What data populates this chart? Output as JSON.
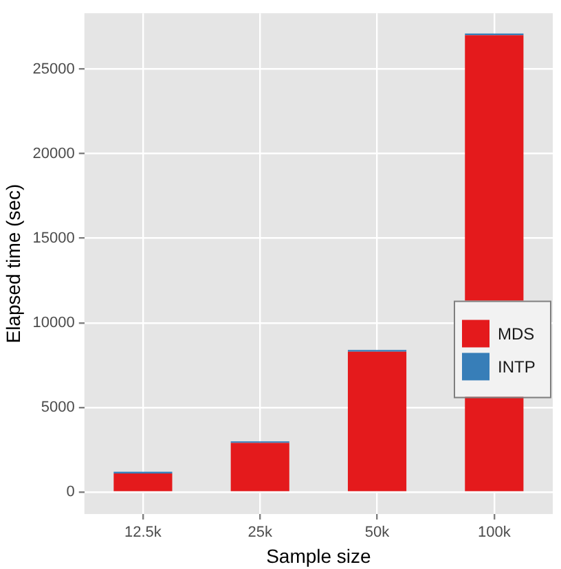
{
  "chart_data": {
    "type": "bar",
    "stacked": true,
    "xlabel": "Sample size",
    "ylabel": "Elapsed time (sec)",
    "categories": [
      "12.5k",
      "25k",
      "50k",
      "100k"
    ],
    "series": [
      {
        "name": "MDS",
        "color": "#e41a1c",
        "values": [
          1100,
          2900,
          8300,
          27000
        ]
      },
      {
        "name": "INTP",
        "color": "#377eb8",
        "values": [
          100,
          100,
          100,
          100
        ]
      }
    ],
    "ylim": [
      -1300,
      28300
    ],
    "yticks": [
      0,
      5000,
      10000,
      15000,
      20000,
      25000
    ],
    "grid": true,
    "legend": "right"
  }
}
